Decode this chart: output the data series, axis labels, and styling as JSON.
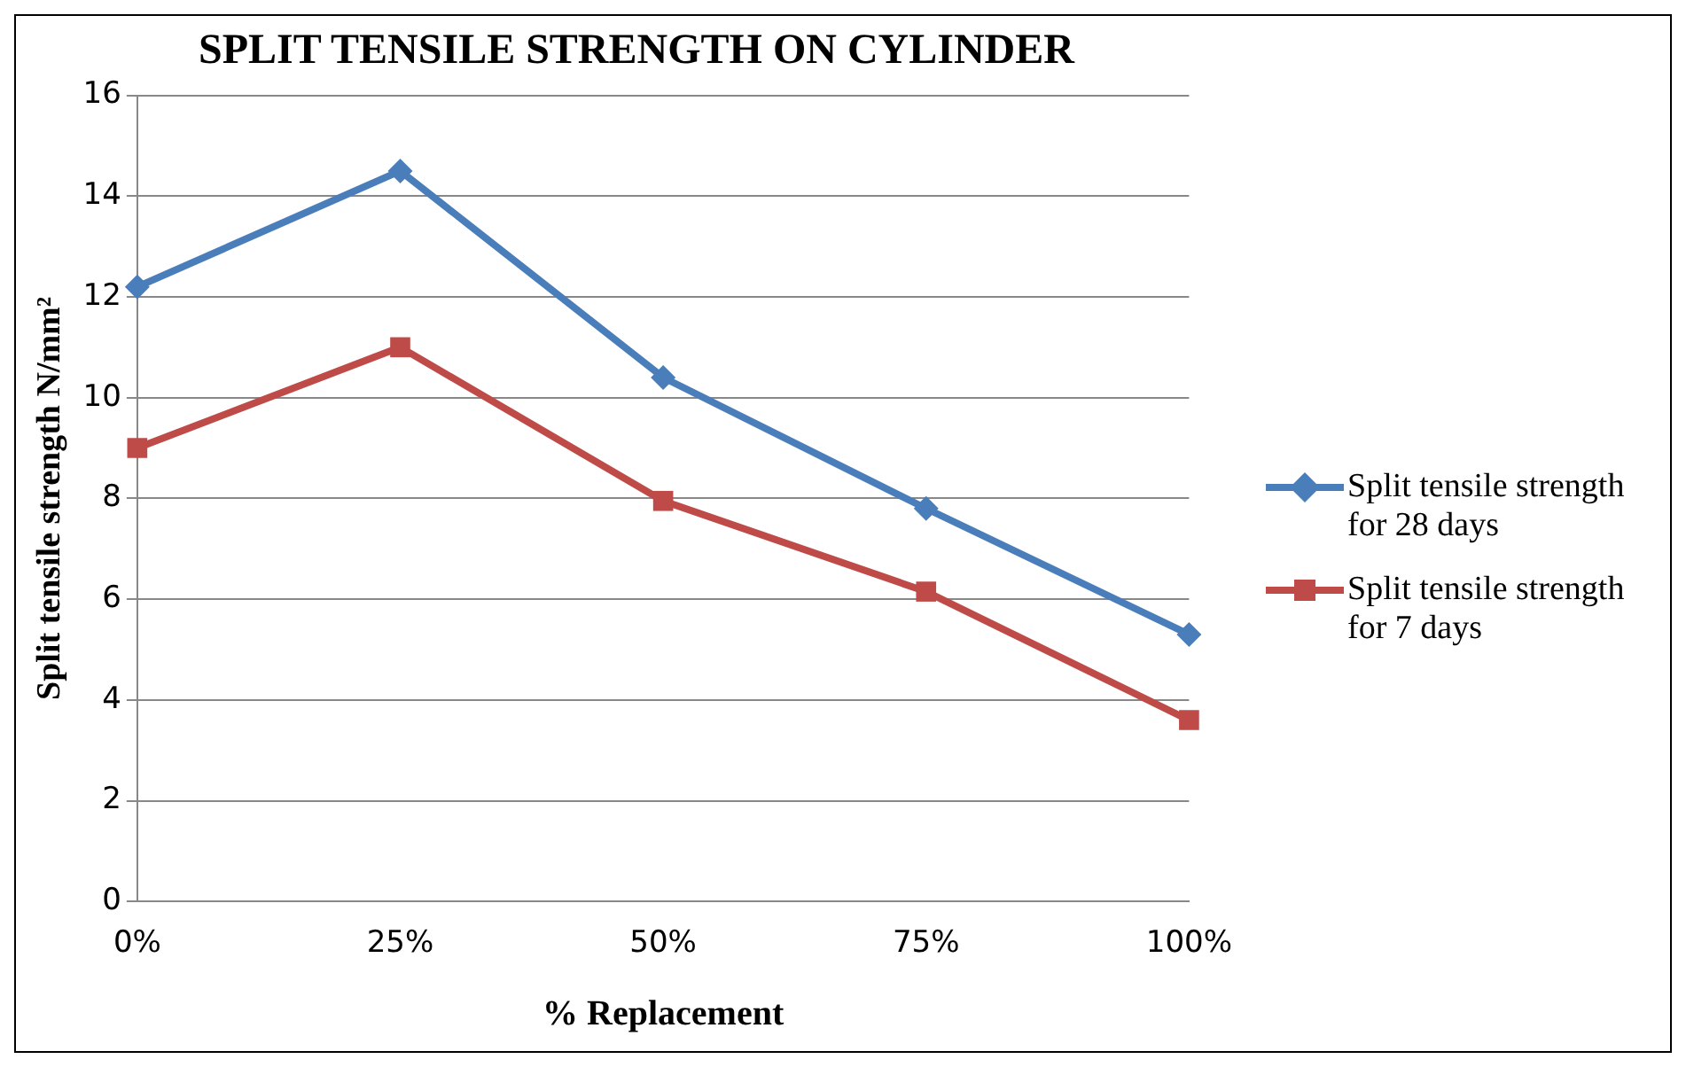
{
  "chart_data": {
    "type": "line",
    "title": "SPLIT TENSILE STRENGTH ON CYLINDER",
    "xlabel": "% Replacement",
    "ylabel": "Split tensile strength N/mm²",
    "categories": [
      "0%",
      "25%",
      "50%",
      "75%",
      "100%"
    ],
    "series": [
      {
        "name": "Split tensile strength for 28 days",
        "color": "#4a7ebb",
        "marker": "diamond",
        "values": [
          12.2,
          14.5,
          10.4,
          7.8,
          5.3
        ]
      },
      {
        "name": "Split tensile strength for 7 days",
        "color": "#be4b48",
        "marker": "square",
        "values": [
          9.0,
          11.0,
          7.95,
          6.15,
          3.6
        ]
      }
    ],
    "ylim": [
      0,
      16
    ],
    "yticks": [
      0,
      2,
      4,
      6,
      8,
      10,
      12,
      14,
      16
    ],
    "grid": "y",
    "legend": "right",
    "line_style": "solid"
  }
}
